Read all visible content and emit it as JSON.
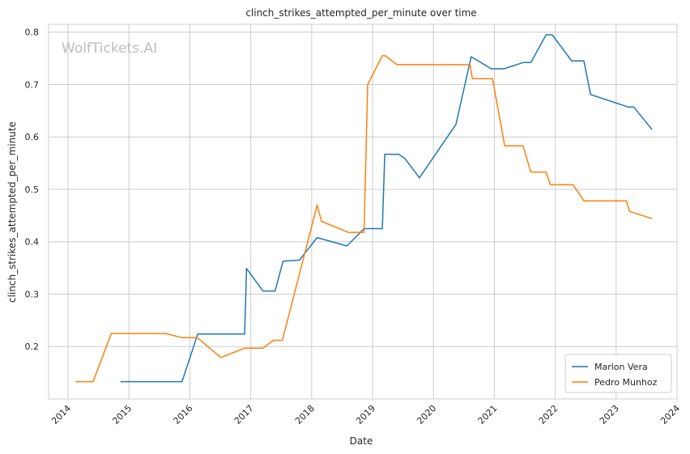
{
  "chart_data": {
    "type": "line",
    "title": "clinch_strikes_attempted_per_minute over time",
    "xlabel": "Date",
    "ylabel": "clinch_strikes_attempted_per_minute",
    "xlim": [
      2013.68,
      2024.0
    ],
    "ylim": [
      0.1,
      0.815
    ],
    "x_ticks": [
      2014,
      2015,
      2016,
      2017,
      2018,
      2019,
      2020,
      2021,
      2022,
      2023,
      2024
    ],
    "x_tick_labels": [
      "2014",
      "2015",
      "2016",
      "2017",
      "2018",
      "2019",
      "2020",
      "2021",
      "2022",
      "2023",
      "2024"
    ],
    "y_ticks": [
      0.2,
      0.3,
      0.4,
      0.5,
      0.6,
      0.7,
      0.8
    ],
    "y_tick_labels": [
      "0.2",
      "0.3",
      "0.4",
      "0.5",
      "0.6",
      "0.7",
      "0.8"
    ],
    "grid": true,
    "legend_position": "bottom-right",
    "watermark": "WolfTickets.AI",
    "series": [
      {
        "name": "Marlon Vera",
        "color": "#1f77b4",
        "points": [
          [
            2014.86,
            0.133
          ],
          [
            2015.87,
            0.133
          ],
          [
            2016.13,
            0.224
          ],
          [
            2016.9,
            0.224
          ],
          [
            2016.93,
            0.349
          ],
          [
            2017.2,
            0.306
          ],
          [
            2017.4,
            0.306
          ],
          [
            2017.53,
            0.363
          ],
          [
            2017.8,
            0.365
          ],
          [
            2018.09,
            0.408
          ],
          [
            2018.58,
            0.392
          ],
          [
            2018.86,
            0.425
          ],
          [
            2019.16,
            0.425
          ],
          [
            2019.2,
            0.567
          ],
          [
            2019.43,
            0.567
          ],
          [
            2019.53,
            0.559
          ],
          [
            2019.77,
            0.522
          ],
          [
            2020.37,
            0.624
          ],
          [
            2020.62,
            0.753
          ],
          [
            2020.95,
            0.73
          ],
          [
            2021.16,
            0.73
          ],
          [
            2021.47,
            0.742
          ],
          [
            2021.6,
            0.742
          ],
          [
            2021.85,
            0.795
          ],
          [
            2021.95,
            0.795
          ],
          [
            2022.27,
            0.745
          ],
          [
            2022.47,
            0.745
          ],
          [
            2022.58,
            0.681
          ],
          [
            2023.2,
            0.657
          ],
          [
            2023.29,
            0.657
          ],
          [
            2023.59,
            0.614
          ]
        ]
      },
      {
        "name": "Pedro Munhoz",
        "color": "#ff7f0e",
        "points": [
          [
            2014.12,
            0.133
          ],
          [
            2014.41,
            0.133
          ],
          [
            2014.71,
            0.225
          ],
          [
            2015.6,
            0.225
          ],
          [
            2015.87,
            0.217
          ],
          [
            2016.12,
            0.217
          ],
          [
            2016.51,
            0.179
          ],
          [
            2016.9,
            0.197
          ],
          [
            2017.2,
            0.197
          ],
          [
            2017.37,
            0.212
          ],
          [
            2017.52,
            0.212
          ],
          [
            2018.09,
            0.47
          ],
          [
            2018.16,
            0.439
          ],
          [
            2018.6,
            0.418
          ],
          [
            2018.86,
            0.418
          ],
          [
            2018.92,
            0.7
          ],
          [
            2019.16,
            0.755
          ],
          [
            2019.21,
            0.755
          ],
          [
            2019.4,
            0.738
          ],
          [
            2020.6,
            0.738
          ],
          [
            2020.64,
            0.711
          ],
          [
            2020.97,
            0.711
          ],
          [
            2021.17,
            0.583
          ],
          [
            2021.47,
            0.583
          ],
          [
            2021.6,
            0.533
          ],
          [
            2021.85,
            0.533
          ],
          [
            2021.92,
            0.509
          ],
          [
            2022.29,
            0.509
          ],
          [
            2022.47,
            0.478
          ],
          [
            2023.17,
            0.478
          ],
          [
            2023.22,
            0.458
          ],
          [
            2023.59,
            0.444
          ]
        ]
      }
    ]
  }
}
